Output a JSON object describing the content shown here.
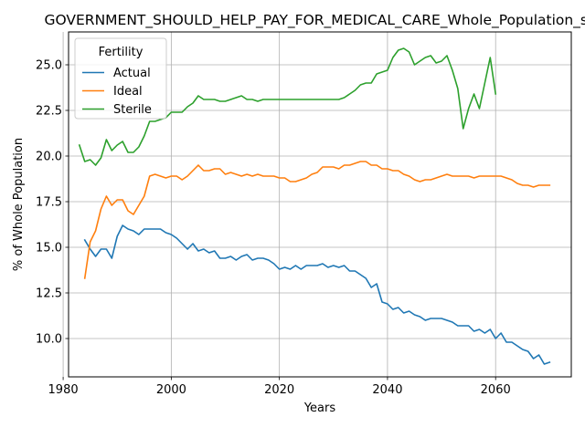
{
  "chart_data": {
    "type": "line",
    "title": "GOVERNMENT_SHOULD_HELP_PAY_FOR_MEDICAL_CARE_Whole_Population_sc",
    "xlabel": "Years",
    "ylabel": "% of Whole Population",
    "xlim": [
      1981,
      2074
    ],
    "ylim": [
      7.9,
      26.8
    ],
    "xticks": [
      1980,
      2000,
      2020,
      2040,
      2060
    ],
    "xtick_labels": [
      "1980",
      "2000",
      "2020",
      "2040",
      "2060"
    ],
    "yticks": [
      10.0,
      12.5,
      15.0,
      17.5,
      20.0,
      22.5,
      25.0
    ],
    "ytick_labels": [
      "10.0",
      "12.5",
      "15.0",
      "17.5",
      "20.0",
      "22.5",
      "25.0"
    ],
    "grid": true,
    "legend": {
      "title": "Fertility",
      "placement": "top-left"
    },
    "series": [
      {
        "name": "Actual",
        "color": "#1f77b4",
        "x": [
          1984,
          1985,
          1986,
          1987,
          1988,
          1989,
          1990,
          1991,
          1992,
          1993,
          1994,
          1995,
          1996,
          1997,
          1998,
          1999,
          2000,
          2001,
          2002,
          2003,
          2004,
          2005,
          2006,
          2007,
          2008,
          2009,
          2010,
          2011,
          2012,
          2013,
          2014,
          2015,
          2016,
          2017,
          2018,
          2019,
          2020,
          2021,
          2022,
          2023,
          2024,
          2025,
          2026,
          2027,
          2028,
          2029,
          2030,
          2031,
          2032,
          2033,
          2034,
          2035,
          2036,
          2037,
          2038,
          2039,
          2040,
          2041,
          2042,
          2043,
          2044,
          2045,
          2046,
          2047,
          2048,
          2049,
          2050,
          2051,
          2052,
          2053,
          2054,
          2055,
          2056,
          2057,
          2058,
          2059,
          2060,
          2061,
          2062,
          2063,
          2064,
          2065,
          2066,
          2067,
          2068,
          2069,
          2070
        ],
        "values": [
          15.4,
          14.9,
          14.5,
          14.9,
          14.9,
          14.4,
          15.6,
          16.2,
          16.0,
          15.9,
          15.7,
          16.0,
          16.0,
          16.0,
          16.0,
          15.8,
          15.7,
          15.5,
          15.2,
          14.9,
          15.2,
          14.8,
          14.9,
          14.7,
          14.8,
          14.4,
          14.4,
          14.5,
          14.3,
          14.5,
          14.6,
          14.3,
          14.4,
          14.4,
          14.3,
          14.1,
          13.8,
          13.9,
          13.8,
          14.0,
          13.8,
          14.0,
          14.0,
          14.0,
          14.1,
          13.9,
          14.0,
          13.9,
          14.0,
          13.7,
          13.7,
          13.5,
          13.3,
          12.8,
          13.0,
          12.0,
          11.9,
          11.6,
          11.7,
          11.4,
          11.5,
          11.3,
          11.2,
          11.0,
          11.1,
          11.1,
          11.1,
          11.0,
          10.9,
          10.7,
          10.7,
          10.7,
          10.4,
          10.5,
          10.3,
          10.5,
          10.0,
          10.3,
          9.8,
          9.8,
          9.6,
          9.4,
          9.3,
          8.9,
          9.1,
          8.6,
          8.7
        ]
      },
      {
        "name": "Ideal",
        "color": "#ff7f0e",
        "x": [
          1984,
          1985,
          1986,
          1987,
          1988,
          1989,
          1990,
          1991,
          1992,
          1993,
          1994,
          1995,
          1996,
          1997,
          1998,
          1999,
          2000,
          2001,
          2002,
          2003,
          2004,
          2005,
          2006,
          2007,
          2008,
          2009,
          2010,
          2011,
          2012,
          2013,
          2014,
          2015,
          2016,
          2017,
          2018,
          2019,
          2020,
          2021,
          2022,
          2023,
          2024,
          2025,
          2026,
          2027,
          2028,
          2029,
          2030,
          2031,
          2032,
          2033,
          2034,
          2035,
          2036,
          2037,
          2038,
          2039,
          2040,
          2041,
          2042,
          2043,
          2044,
          2045,
          2046,
          2047,
          2048,
          2049,
          2050,
          2051,
          2052,
          2053,
          2054,
          2055,
          2056,
          2057,
          2058,
          2059,
          2060,
          2061,
          2062,
          2063,
          2064,
          2065,
          2066,
          2067,
          2068,
          2069,
          2070
        ],
        "values": [
          13.3,
          15.3,
          15.9,
          17.1,
          17.8,
          17.3,
          17.6,
          17.6,
          17.0,
          16.8,
          17.3,
          17.8,
          18.9,
          19.0,
          18.9,
          18.8,
          18.9,
          18.9,
          18.7,
          18.9,
          19.2,
          19.5,
          19.2,
          19.2,
          19.3,
          19.3,
          19.0,
          19.1,
          19.0,
          18.9,
          19.0,
          18.9,
          19.0,
          18.9,
          18.9,
          18.9,
          18.8,
          18.8,
          18.6,
          18.6,
          18.7,
          18.8,
          19.0,
          19.1,
          19.4,
          19.4,
          19.4,
          19.3,
          19.5,
          19.5,
          19.6,
          19.7,
          19.7,
          19.5,
          19.5,
          19.3,
          19.3,
          19.2,
          19.2,
          19.0,
          18.9,
          18.7,
          18.6,
          18.7,
          18.7,
          18.8,
          18.9,
          19.0,
          18.9,
          18.9,
          18.9,
          18.9,
          18.8,
          18.9,
          18.9,
          18.9,
          18.9,
          18.9,
          18.8,
          18.7,
          18.5,
          18.4,
          18.4,
          18.3,
          18.4,
          18.4,
          18.4
        ]
      },
      {
        "name": "Sterile",
        "color": "#2ca02c",
        "x": [
          1983,
          1984,
          1985,
          1986,
          1987,
          1988,
          1989,
          1990,
          1991,
          1992,
          1993,
          1994,
          1995,
          1996,
          1997,
          1998,
          1999,
          2000,
          2001,
          2002,
          2003,
          2004,
          2005,
          2006,
          2007,
          2008,
          2009,
          2010,
          2011,
          2012,
          2013,
          2014,
          2015,
          2016,
          2017,
          2018,
          2019,
          2020,
          2021,
          2022,
          2023,
          2024,
          2025,
          2026,
          2027,
          2028,
          2029,
          2030,
          2031,
          2032,
          2033,
          2034,
          2035,
          2036,
          2037,
          2038,
          2039,
          2040,
          2041,
          2042,
          2043,
          2044,
          2045,
          2046,
          2047,
          2048,
          2049,
          2050,
          2051,
          2052,
          2053,
          2054,
          2055,
          2056,
          2057,
          2058,
          2059,
          2060
        ],
        "values": [
          20.6,
          19.7,
          19.8,
          19.5,
          19.9,
          20.9,
          20.3,
          20.6,
          20.8,
          20.2,
          20.2,
          20.5,
          21.1,
          21.9,
          21.9,
          22.0,
          22.1,
          22.4,
          22.4,
          22.4,
          22.7,
          22.9,
          23.3,
          23.1,
          23.1,
          23.1,
          23.0,
          23.0,
          23.1,
          23.2,
          23.3,
          23.1,
          23.1,
          23.0,
          23.1,
          23.1,
          23.1,
          23.1,
          23.1,
          23.1,
          23.1,
          23.1,
          23.1,
          23.1,
          23.1,
          23.1,
          23.1,
          23.1,
          23.1,
          23.2,
          23.4,
          23.6,
          23.9,
          24.0,
          24.0,
          24.5,
          24.6,
          24.7,
          25.4,
          25.8,
          25.9,
          25.7,
          25.0,
          25.2,
          25.4,
          25.5,
          25.1,
          25.2,
          25.5,
          24.7,
          23.7,
          21.5,
          22.6,
          23.4,
          22.6,
          24.0,
          25.4,
          23.4
        ]
      }
    ]
  }
}
